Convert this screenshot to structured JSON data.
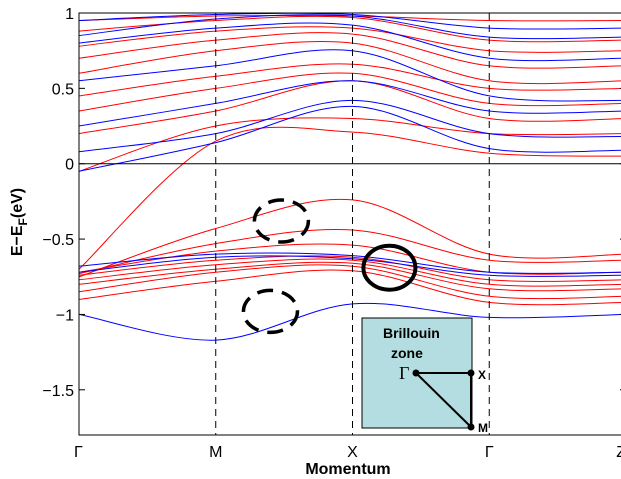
{
  "chart_data": {
    "type": "line",
    "xlabel": "Momentum",
    "ylabel": "E−E",
    "ylabel_sub": "F",
    "ylabel_unit": "(eV)",
    "ylim": [
      -1.8,
      1.0
    ],
    "yticks": [
      1,
      0.5,
      0,
      -0.5,
      -1,
      -1.5
    ],
    "ytick_labels": [
      "1",
      "0.5",
      "0",
      "−0.5",
      "−1",
      "−1.5"
    ],
    "x_points": [
      {
        "label": "Γ",
        "pos": 0
      },
      {
        "label": "M",
        "pos": 1
      },
      {
        "label": "X",
        "pos": 2
      },
      {
        "label": "Γ",
        "pos": 3
      },
      {
        "label": "Z",
        "pos": 4
      }
    ],
    "fermi_level": 0,
    "colors": {
      "series_a": "#ff0000",
      "series_b": "#0000ff"
    },
    "blue_bands": [
      [
        -1.0,
        -1.17,
        -0.93,
        -1.02,
        -1.0
      ],
      [
        -0.72,
        -0.62,
        -0.63,
        -0.74,
        -0.74
      ],
      [
        -0.68,
        -0.6,
        -0.61,
        -0.72,
        -0.72
      ],
      [
        -0.05,
        0.14,
        0.38,
        0.1,
        0.09
      ],
      [
        0.08,
        0.2,
        0.42,
        0.2,
        0.18
      ],
      [
        0.25,
        0.4,
        0.55,
        0.35,
        0.35
      ],
      [
        0.55,
        0.65,
        0.75,
        0.45,
        0.42
      ],
      [
        0.8,
        0.9,
        0.92,
        0.7,
        0.7
      ],
      [
        0.85,
        0.96,
        0.98,
        0.84,
        0.84
      ],
      [
        0.95,
        0.99,
        0.99,
        0.9,
        0.9
      ]
    ],
    "red_bands": [
      [
        -0.9,
        -0.78,
        -0.71,
        -0.92,
        -0.92
      ],
      [
        -0.85,
        -0.72,
        -0.68,
        -0.88,
        -0.88
      ],
      [
        -0.8,
        -0.7,
        -0.66,
        -0.83,
        -0.83
      ],
      [
        -0.77,
        -0.67,
        -0.64,
        -0.8,
        -0.8
      ],
      [
        -0.74,
        -0.64,
        -0.62,
        -0.77,
        -0.77
      ],
      [
        -0.72,
        -0.58,
        -0.54,
        -0.72,
        -0.72
      ],
      [
        -0.73,
        -0.53,
        -0.44,
        -0.64,
        -0.64
      ],
      [
        -0.75,
        -0.43,
        -0.24,
        -0.6,
        -0.6
      ],
      [
        -0.7,
        0.15,
        0.21,
        0.07,
        0.05
      ],
      [
        -0.05,
        0.25,
        0.3,
        0.2,
        0.2
      ],
      [
        0.2,
        0.35,
        0.55,
        0.3,
        0.3
      ],
      [
        0.35,
        0.5,
        0.6,
        0.4,
        0.4
      ],
      [
        0.45,
        0.58,
        0.66,
        0.5,
        0.5
      ],
      [
        0.6,
        0.75,
        0.8,
        0.55,
        0.55
      ],
      [
        0.7,
        0.82,
        0.86,
        0.65,
        0.65
      ],
      [
        0.78,
        0.88,
        0.9,
        0.75,
        0.75
      ],
      [
        0.88,
        0.95,
        0.97,
        0.82,
        0.82
      ],
      [
        0.95,
        0.98,
        0.98,
        0.95,
        0.95
      ]
    ],
    "annotations": [
      {
        "type": "dashed-ellipse",
        "x": 1.48,
        "y": -0.38
      },
      {
        "type": "dashed-ellipse",
        "x": 1.4,
        "y": -0.98
      },
      {
        "type": "solid-ellipse",
        "x": 2.27,
        "y": -0.69
      }
    ],
    "inset": {
      "title_line1": "Brillouin",
      "title_line2": "zone",
      "gamma": "Γ",
      "x_point": "X",
      "m_point": "M",
      "fill": "#b3dde0"
    }
  }
}
